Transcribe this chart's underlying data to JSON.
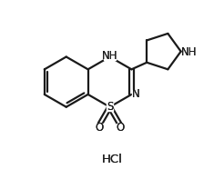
{
  "background_color": "#ffffff",
  "line_color": "#1a1a1a",
  "line_width": 1.6,
  "label_fontsize": 8.5,
  "hcl_fontsize": 9.5,
  "hcl_text": "HCl",
  "nh_label": "NH",
  "n_label": "N",
  "s_label": "S",
  "nh_pyrrole_label": "NH",
  "o1_label": "O",
  "o2_label": "O"
}
